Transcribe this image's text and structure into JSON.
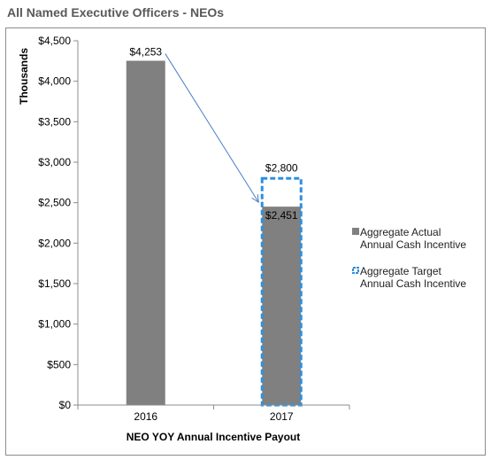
{
  "title": "All Named Executive Officers - NEOs",
  "chart_data": {
    "type": "bar",
    "categories": [
      "2016",
      "2017"
    ],
    "series": [
      {
        "name": "Aggregate Actual Annual Cash Incentive",
        "values": [
          4253,
          2451
        ],
        "labels": [
          "$4,253",
          "$2,451"
        ],
        "color": "#808080",
        "style": "solid"
      },
      {
        "name": "Aggregate Target Annual Cash Incentive",
        "values": [
          null,
          2800
        ],
        "labels": [
          "",
          "$2,800"
        ],
        "color": "#2e8fde",
        "style": "dashed-outline"
      }
    ],
    "xlabel": "NEO YOY Annual Incentive Payout",
    "ylabel": "Thousands",
    "ylim": [
      0,
      4500
    ],
    "yticks": [
      0,
      500,
      1000,
      1500,
      2000,
      2500,
      3000,
      3500,
      4000,
      4500
    ],
    "ytick_labels": [
      "$0",
      "$500",
      "$1,000",
      "$1,500",
      "$2,000",
      "$2,500",
      "$3,000",
      "$3,500",
      "$4,000",
      "$4,500"
    ],
    "legend_position": "right",
    "annotations": [
      {
        "type": "arrow",
        "from": "2016",
        "to": "2017"
      }
    ],
    "grid": false
  }
}
